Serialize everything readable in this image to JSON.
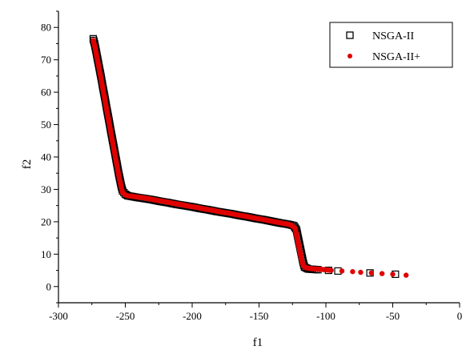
{
  "chart_data": {
    "type": "scatter",
    "title": "",
    "xlabel": "f1",
    "ylabel": "f2",
    "xlim": [
      -300,
      0
    ],
    "ylim": [
      -5,
      85
    ],
    "xticks": [
      -300,
      -250,
      -200,
      -150,
      -100,
      -50,
      0
    ],
    "yticks": [
      0,
      10,
      20,
      30,
      40,
      50,
      60,
      70,
      80
    ],
    "xtick_labels": [
      "-300",
      "-250",
      "-200",
      "-150",
      "-100",
      "-50",
      "0"
    ],
    "ytick_labels": [
      "0",
      "10",
      "20",
      "30",
      "40",
      "50",
      "60",
      "70",
      "80"
    ],
    "grid": false,
    "legend_position": "top-right",
    "series": [
      {
        "name": "NSGA-II",
        "marker": "open-square",
        "color": "#000000",
        "points": [
          [
            -274,
            76.5
          ],
          [
            -273,
            75.0
          ],
          [
            -272,
            73.0
          ],
          [
            -271,
            70.8
          ],
          [
            -270,
            68.7
          ],
          [
            -269,
            66.5
          ],
          [
            -268,
            64.4
          ],
          [
            -267,
            62.0
          ],
          [
            -266,
            59.8
          ],
          [
            -265,
            57.6
          ],
          [
            -264,
            55.2
          ],
          [
            -263,
            53.0
          ],
          [
            -262,
            50.8
          ],
          [
            -261,
            48.4
          ],
          [
            -260,
            46.2
          ],
          [
            -259,
            44.0
          ],
          [
            -258,
            41.8
          ],
          [
            -257,
            39.5
          ],
          [
            -256,
            37.3
          ],
          [
            -255,
            35.0
          ],
          [
            -254,
            33.0
          ],
          [
            -253,
            31.0
          ],
          [
            -252,
            29.5
          ],
          [
            -250,
            28.5
          ],
          [
            -248,
            28.0
          ],
          [
            -245,
            27.8
          ],
          [
            -241,
            27.5
          ],
          [
            -236,
            27.2
          ],
          [
            -230,
            26.8
          ],
          [
            -224,
            26.3
          ],
          [
            -218,
            25.9
          ],
          [
            -212,
            25.4
          ],
          [
            -206,
            25.0
          ],
          [
            -200,
            24.6
          ],
          [
            -194,
            24.1
          ],
          [
            -188,
            23.7
          ],
          [
            -182,
            23.2
          ],
          [
            -176,
            22.8
          ],
          [
            -170,
            22.4
          ],
          [
            -164,
            21.9
          ],
          [
            -158,
            21.5
          ],
          [
            -152,
            21.0
          ],
          [
            -146,
            20.6
          ],
          [
            -140,
            20.1
          ],
          [
            -134,
            19.6
          ],
          [
            -128,
            19.2
          ],
          [
            -124,
            18.8
          ],
          [
            -122,
            17.5
          ],
          [
            -121,
            15.5
          ],
          [
            -120,
            13.5
          ],
          [
            -119,
            11.5
          ],
          [
            -118,
            9.5
          ],
          [
            -117,
            7.5
          ],
          [
            -116,
            6.0
          ],
          [
            -113,
            5.4
          ],
          [
            -106,
            5.2
          ],
          [
            -98,
            5.0
          ],
          [
            -91,
            4.8
          ],
          [
            -67,
            4.2
          ],
          [
            -48,
            3.8
          ]
        ]
      },
      {
        "name": "NSGA-II+",
        "marker": "filled-circle",
        "color": "#e00000",
        "points": [
          [
            -274,
            76.0
          ],
          [
            -273,
            74.5
          ],
          [
            -272,
            72.5
          ],
          [
            -271,
            70.3
          ],
          [
            -270,
            68.2
          ],
          [
            -269,
            66.0
          ],
          [
            -268,
            63.9
          ],
          [
            -267,
            61.5
          ],
          [
            -266,
            59.3
          ],
          [
            -265,
            57.1
          ],
          [
            -264,
            54.7
          ],
          [
            -263,
            52.5
          ],
          [
            -262,
            50.3
          ],
          [
            -261,
            47.9
          ],
          [
            -260,
            45.7
          ],
          [
            -259,
            43.5
          ],
          [
            -258,
            41.3
          ],
          [
            -257,
            39.0
          ],
          [
            -256,
            36.8
          ],
          [
            -255,
            34.5
          ],
          [
            -254,
            32.5
          ],
          [
            -253,
            30.5
          ],
          [
            -252,
            29.0
          ],
          [
            -250,
            28.3
          ],
          [
            -248,
            28.0
          ],
          [
            -245,
            27.9
          ],
          [
            -242,
            27.7
          ],
          [
            -238,
            27.5
          ],
          [
            -232,
            27.1
          ],
          [
            -226,
            26.6
          ],
          [
            -220,
            26.2
          ],
          [
            -214,
            25.7
          ],
          [
            -208,
            25.3
          ],
          [
            -202,
            24.8
          ],
          [
            -196,
            24.4
          ],
          [
            -190,
            23.9
          ],
          [
            -184,
            23.5
          ],
          [
            -178,
            23.0
          ],
          [
            -172,
            22.6
          ],
          [
            -166,
            22.1
          ],
          [
            -160,
            21.7
          ],
          [
            -154,
            21.2
          ],
          [
            -148,
            20.8
          ],
          [
            -142,
            20.3
          ],
          [
            -136,
            19.8
          ],
          [
            -130,
            19.4
          ],
          [
            -126,
            19.0
          ],
          [
            -123,
            18.0
          ],
          [
            -122,
            16.0
          ],
          [
            -121,
            14.0
          ],
          [
            -120,
            12.0
          ],
          [
            -119,
            10.0
          ],
          [
            -118,
            8.0
          ],
          [
            -117,
            6.5
          ],
          [
            -115,
            5.8
          ],
          [
            -110,
            5.5
          ],
          [
            -103,
            5.3
          ],
          [
            -96,
            5.0
          ],
          [
            -88,
            4.8
          ],
          [
            -80,
            4.6
          ],
          [
            -74,
            4.4
          ],
          [
            -66,
            4.2
          ],
          [
            -58,
            4.0
          ],
          [
            -50,
            3.8
          ],
          [
            -40,
            3.5
          ]
        ]
      }
    ]
  },
  "colors": {
    "axis": "#000000",
    "series1": "#000000",
    "series2": "#e00000"
  }
}
